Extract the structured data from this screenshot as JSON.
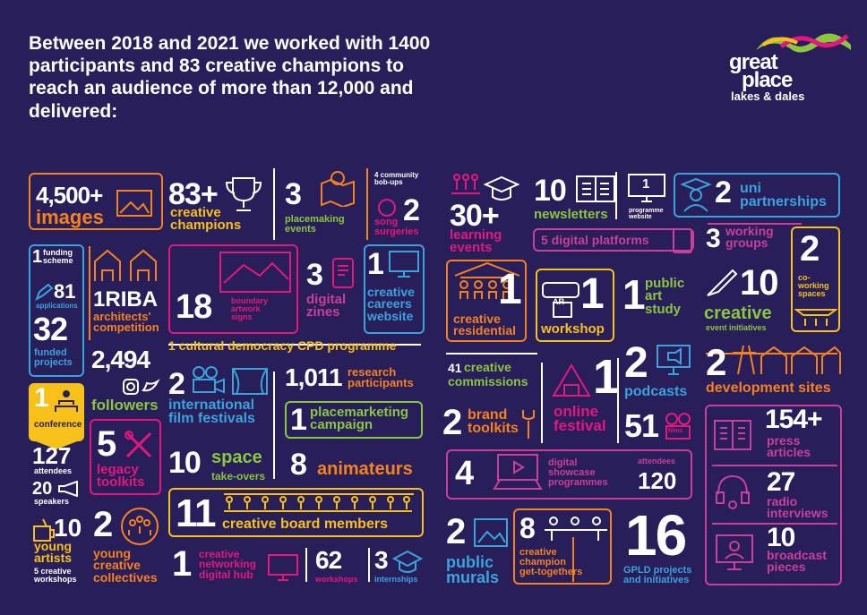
{
  "headline": "Between 2018 and 2021 we worked with 1400 participants and 83 creative champions to reach an audience of more than 12,000 and delivered:",
  "logo": {
    "line1": "great",
    "line2": "place",
    "line3": "lakes & dales"
  },
  "stats": {
    "images": {
      "n": "4,500+",
      "label": "images"
    },
    "champions": {
      "n": "83+",
      "label1": "creative",
      "label2": "champions"
    },
    "placemaking": {
      "n": "3",
      "label1": "placemaking",
      "label2": "events"
    },
    "bobups": {
      "label1": "4 community",
      "label2": "bob-ups"
    },
    "song": {
      "n": "2",
      "label1": "song",
      "label2": "surgeries"
    },
    "funding": {
      "n": "1",
      "label1": "funding",
      "label2": "scheme",
      "apps_n": "81",
      "apps": "applications",
      "funded_n": "32",
      "funded1": "funded",
      "funded2": "projects"
    },
    "riba": {
      "n": "1",
      "big": "RIBA",
      "label1": "architects'",
      "label2": "competition"
    },
    "boundary": {
      "n": "18",
      "label1": "boundary",
      "label2": "artwork",
      "label3": "signs"
    },
    "zines": {
      "n": "3",
      "label1": "digital",
      "label2": "zines"
    },
    "careers": {
      "n": "1",
      "label1": "creative",
      "label2": "careers",
      "label3": "website"
    },
    "cpd": {
      "text": "1 cultural democracy CPD programme"
    },
    "followers": {
      "n": "2,494",
      "label": "followers"
    },
    "conference": {
      "n": "1",
      "label": "conference",
      "att_n": "127",
      "att": "attendees",
      "spk_n": "20",
      "spk": "speakers"
    },
    "film": {
      "n": "2",
      "label1": "international",
      "label2": "film festivals"
    },
    "research": {
      "n": "1,011",
      "label1": "research",
      "label2": "participants"
    },
    "placemarketing": {
      "n": "1",
      "label1": "placemarketing",
      "label2": "campaign"
    },
    "legacy": {
      "n": "5",
      "label1": "legacy",
      "label2": "toolkits"
    },
    "space": {
      "n": "10",
      "label1": "space",
      "label2": "take-overs"
    },
    "animateurs": {
      "n": "8",
      "label": "animateurs"
    },
    "young": {
      "n": "10",
      "label1": "young",
      "label2": "artists",
      "ws": "5 creative workshops"
    },
    "board": {
      "n": "11",
      "label": "creative board members"
    },
    "collectives": {
      "n": "2",
      "label1": "young",
      "label2": "creative",
      "label3": "collectives"
    },
    "hub": {
      "n": "1",
      "label1": "creative",
      "label2": "networking",
      "label3": "digital hub"
    },
    "workshops": {
      "n": "62",
      "label": "workshops"
    },
    "internships": {
      "n": "3",
      "label": "internships"
    },
    "learning": {
      "n": "30+",
      "label1": "learning",
      "label2": "events"
    },
    "newsletters": {
      "n": "10",
      "label": "newsletters"
    },
    "progweb": {
      "n": "1",
      "label1": "programme",
      "label2": "website"
    },
    "uni": {
      "n": "2",
      "label1": "uni",
      "label2": "partnerships"
    },
    "platforms": {
      "text": "5 digital platforms"
    },
    "groups": {
      "n": "3",
      "label1": "working",
      "label2": "groups"
    },
    "cowork": {
      "n": "2",
      "label1": "co-",
      "label2": "working",
      "label3": "spaces"
    },
    "residential": {
      "n": "1",
      "label1": "creative",
      "label2": "residential"
    },
    "arworkshop": {
      "n": "1",
      "label": "workshop",
      "ar": "AR"
    },
    "artstudy": {
      "n": "1",
      "label1": "public",
      "label2": "art",
      "label3": "study"
    },
    "eventinit": {
      "n": "10",
      "label1": "creative",
      "label2": "event initiatives"
    },
    "commissions": {
      "n": "41",
      "label1": "creative",
      "label2": "commissions"
    },
    "festival": {
      "n": "1",
      "label1": "online",
      "label2": "festival"
    },
    "podcasts": {
      "n": "2",
      "label": "podcasts"
    },
    "devsites": {
      "n": "2",
      "label": "development sites"
    },
    "brand": {
      "n": "2",
      "label1": "brand",
      "label2": "toolkits"
    },
    "films": {
      "n": "51",
      "label": "films"
    },
    "press": {
      "n": "154+",
      "label1": "press",
      "label2": "articles"
    },
    "showcase": {
      "n": "4",
      "label1": "digital",
      "label2": "showcase",
      "label3": "programmes",
      "att": "attendees",
      "att_n": "120"
    },
    "radio": {
      "n": "27",
      "label1": "radio",
      "label2": "interviews"
    },
    "murals": {
      "n": "2",
      "label1": "public",
      "label2": "murals"
    },
    "gettogethers": {
      "n": "8",
      "label1": "creative",
      "label2": "champion",
      "label3": "get-togethers"
    },
    "gpld": {
      "n": "16",
      "label1": "GPLD projects",
      "label2": "and initiatives"
    },
    "broadcast": {
      "n": "10",
      "label1": "broadcast",
      "label2": "pieces"
    }
  },
  "colors": {
    "bg": "#281e5a",
    "orange": "#f5821f",
    "yellow": "#f8c11a",
    "green": "#8cc63f",
    "pink": "#e5177e",
    "blue": "#3ba3dc",
    "magenta": "#c93f9a"
  }
}
